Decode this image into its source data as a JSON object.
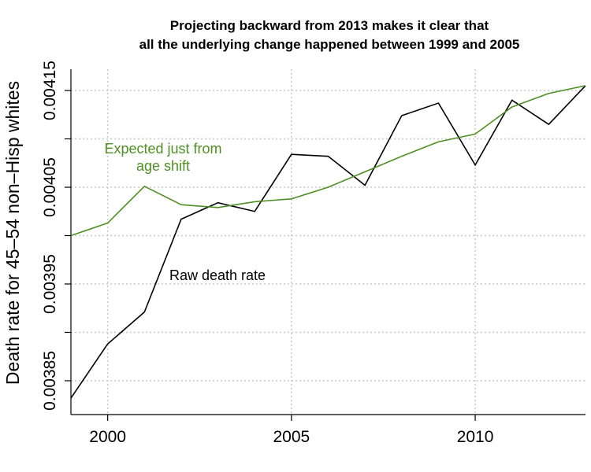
{
  "chart_data": {
    "type": "line",
    "title_lines": [
      "Projecting backward from 2013 makes it clear that",
      "all the underlying change happened between 1999 and 2005"
    ],
    "xlabel": "",
    "ylabel": "Death rate for 45–54 non–Hisp whites",
    "xlim": [
      1999,
      2013
    ],
    "ylim": [
      0.003815,
      0.004172
    ],
    "x_ticks": [
      2000,
      2005,
      2010
    ],
    "x_tick_labels": [
      "2000",
      "2005",
      "2010"
    ],
    "y_ticks": [
      0.00385,
      0.0039,
      0.00395,
      0.004,
      0.00405,
      0.0041,
      0.00415
    ],
    "y_tick_labels": [
      "0.00385",
      "",
      "0.00395",
      "",
      "0.00405",
      "",
      "0.00415"
    ],
    "grid": true,
    "x": [
      1999,
      2000,
      2001,
      2002,
      2003,
      2004,
      2005,
      2006,
      2007,
      2008,
      2009,
      2010,
      2011,
      2012,
      2013
    ],
    "series": [
      {
        "name": "Raw death rate",
        "color": "#000000",
        "values": [
          0.003832,
          0.003888,
          0.003921,
          0.004017,
          0.004034,
          0.004025,
          0.004084,
          0.004082,
          0.004052,
          0.004124,
          0.004137,
          0.004073,
          0.00414,
          0.004115,
          0.004155
        ]
      },
      {
        "name": "Expected just from age shift",
        "color": "#4f8f23",
        "values": [
          0.004,
          0.004013,
          0.004051,
          0.004032,
          0.004029,
          0.004035,
          0.004038,
          0.00405,
          0.004066,
          0.004082,
          0.004097,
          0.004105,
          0.004133,
          0.004147,
          0.004155
        ]
      }
    ],
    "annotations": [
      {
        "series_index": 1,
        "lines": [
          "Expected just from",
          "age shift"
        ],
        "color": "#4f8f23"
      },
      {
        "series_index": 0,
        "lines": [
          "Raw death rate"
        ],
        "color": "#000000"
      }
    ]
  }
}
